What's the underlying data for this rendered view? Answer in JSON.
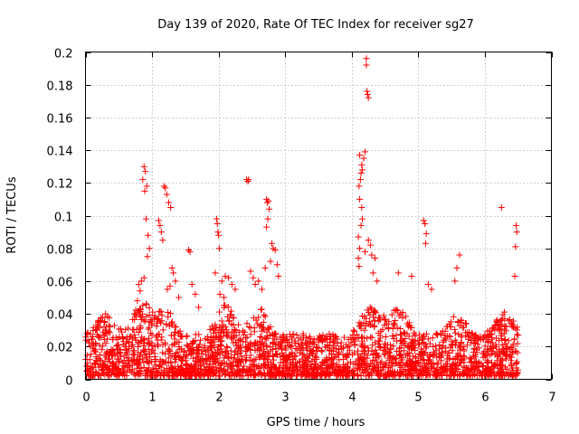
{
  "chart_data": {
    "type": "scatter",
    "title": "Day 139 of 2020, Rate Of TEC Index for receiver sg27",
    "xlabel": "GPS time / hours",
    "ylabel": "ROTI / TECUs",
    "xlim": [
      0,
      7
    ],
    "ylim": [
      0,
      0.2
    ],
    "xticks": [
      0,
      1,
      2,
      3,
      4,
      5,
      6,
      7
    ],
    "yticks": [
      0,
      0.02,
      0.04,
      0.06,
      0.08,
      0.1,
      0.12,
      0.14,
      0.16,
      0.18,
      0.2
    ],
    "xtick_labels": [
      "0",
      "1",
      "2",
      "3",
      "4",
      "5",
      "6",
      "7"
    ],
    "ytick_labels": [
      "0",
      "0.02",
      "0.04",
      "0.06",
      "0.08",
      "0.1",
      "0.12",
      "0.14",
      "0.16",
      "0.18",
      "0.2"
    ],
    "grid": true,
    "marker": "+",
    "color": "#ff0000",
    "series": [
      {
        "name": "sg27",
        "points": [
          [
            0.88,
            0.13
          ],
          [
            0.9,
            0.127
          ],
          [
            0.86,
            0.122
          ],
          [
            0.92,
            0.118
          ],
          [
            0.89,
            0.115
          ],
          [
            0.91,
            0.098
          ],
          [
            0.94,
            0.088
          ],
          [
            0.96,
            0.08
          ],
          [
            0.93,
            0.075
          ],
          [
            0.88,
            0.062
          ],
          [
            0.84,
            0.06
          ],
          [
            0.8,
            0.058
          ],
          [
            0.82,
            0.054
          ],
          [
            0.78,
            0.048
          ],
          [
            0.86,
            0.045
          ],
          [
            1.1,
            0.097
          ],
          [
            1.12,
            0.094
          ],
          [
            1.14,
            0.09
          ],
          [
            1.18,
            0.118
          ],
          [
            1.2,
            0.117
          ],
          [
            1.22,
            0.113
          ],
          [
            1.25,
            0.108
          ],
          [
            1.28,
            0.105
          ],
          [
            1.16,
            0.085
          ],
          [
            1.3,
            0.068
          ],
          [
            1.32,
            0.065
          ],
          [
            1.35,
            0.06
          ],
          [
            1.27,
            0.057
          ],
          [
            1.4,
            0.05
          ],
          [
            1.23,
            0.055
          ],
          [
            1.55,
            0.079
          ],
          [
            1.57,
            0.078
          ],
          [
            1.6,
            0.058
          ],
          [
            1.65,
            0.052
          ],
          [
            1.7,
            0.044
          ],
          [
            1.97,
            0.098
          ],
          [
            1.98,
            0.095
          ],
          [
            1.99,
            0.09
          ],
          [
            2.0,
            0.088
          ],
          [
            2.01,
            0.08
          ],
          [
            1.95,
            0.065
          ],
          [
            2.05,
            0.06
          ],
          [
            2.1,
            0.063
          ],
          [
            2.15,
            0.062
          ],
          [
            2.2,
            0.058
          ],
          [
            2.25,
            0.055
          ],
          [
            2.02,
            0.052
          ],
          [
            2.08,
            0.05
          ],
          [
            2.42,
            0.122
          ],
          [
            2.44,
            0.121
          ],
          [
            2.45,
            0.122
          ],
          [
            2.48,
            0.066
          ],
          [
            2.52,
            0.062
          ],
          [
            2.55,
            0.058
          ],
          [
            2.6,
            0.06
          ],
          [
            2.65,
            0.055
          ],
          [
            2.72,
            0.11
          ],
          [
            2.73,
            0.108
          ],
          [
            2.75,
            0.109
          ],
          [
            2.76,
            0.104
          ],
          [
            2.74,
            0.098
          ],
          [
            2.72,
            0.093
          ],
          [
            2.8,
            0.083
          ],
          [
            2.82,
            0.08
          ],
          [
            2.85,
            0.079
          ],
          [
            2.78,
            0.072
          ],
          [
            2.88,
            0.07
          ],
          [
            2.7,
            0.068
          ],
          [
            2.9,
            0.063
          ],
          [
            4.12,
            0.137
          ],
          [
            4.15,
            0.131
          ],
          [
            4.16,
            0.128
          ],
          [
            4.18,
            0.135
          ],
          [
            4.2,
            0.139
          ],
          [
            4.14,
            0.126
          ],
          [
            4.13,
            0.122
          ],
          [
            4.11,
            0.118
          ],
          [
            4.12,
            0.11
          ],
          [
            4.15,
            0.105
          ],
          [
            4.16,
            0.098
          ],
          [
            4.14,
            0.094
          ],
          [
            4.1,
            0.087
          ],
          [
            4.12,
            0.08
          ],
          [
            4.1,
            0.074
          ],
          [
            4.11,
            0.069
          ],
          [
            4.2,
            0.078
          ],
          [
            4.25,
            0.085
          ],
          [
            4.28,
            0.082
          ],
          [
            4.3,
            0.076
          ],
          [
            4.35,
            0.074
          ],
          [
            4.32,
            0.065
          ],
          [
            4.38,
            0.06
          ],
          [
            4.22,
            0.196
          ],
          [
            4.22,
            0.192
          ],
          [
            4.23,
            0.176
          ],
          [
            4.24,
            0.174
          ],
          [
            4.25,
            0.172
          ],
          [
            4.7,
            0.065
          ],
          [
            4.9,
            0.063
          ],
          [
            5.08,
            0.097
          ],
          [
            5.1,
            0.095
          ],
          [
            5.12,
            0.089
          ],
          [
            5.11,
            0.083
          ],
          [
            5.15,
            0.058
          ],
          [
            5.2,
            0.055
          ],
          [
            5.62,
            0.076
          ],
          [
            5.58,
            0.068
          ],
          [
            5.55,
            0.06
          ],
          [
            6.25,
            0.105
          ],
          [
            6.47,
            0.094
          ],
          [
            6.48,
            0.09
          ],
          [
            6.46,
            0.081
          ],
          [
            6.45,
            0.063
          ]
        ]
      }
    ]
  }
}
